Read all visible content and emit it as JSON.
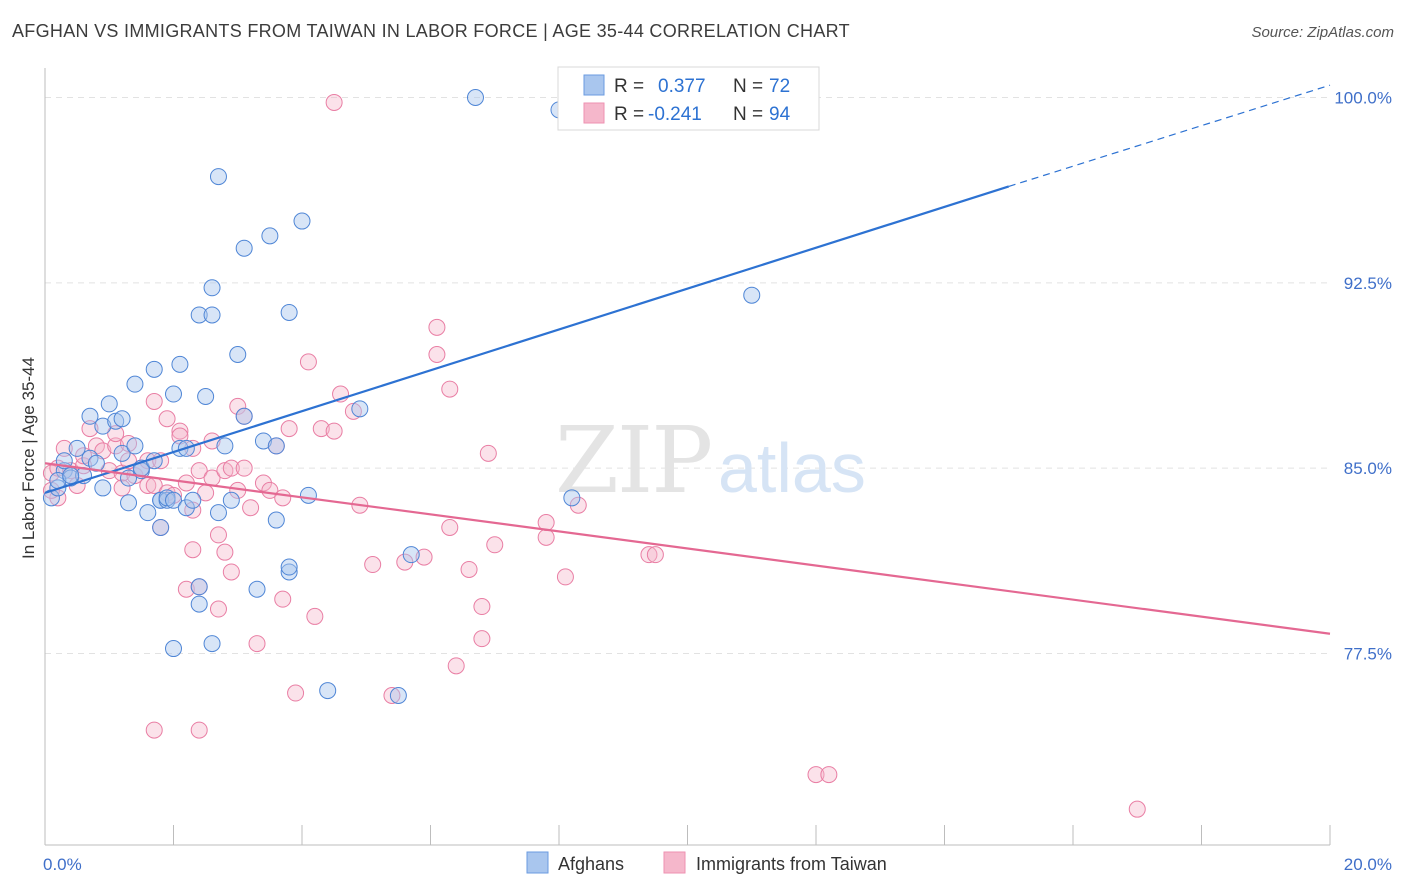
{
  "title": "AFGHAN VS IMMIGRANTS FROM TAIWAN IN LABOR FORCE | AGE 35-44 CORRELATION CHART",
  "source": "Source: ZipAtlas.com",
  "watermark": {
    "zip": "ZIP",
    "atlas": "atlas"
  },
  "colors": {
    "blue": "#2d72d2",
    "pink": "#e46892",
    "blue_fill": "#a9c6ee",
    "pink_fill": "#f5b7cb",
    "tick": "#3f6fc9"
  },
  "chart_data": {
    "type": "scatter",
    "xlabel": "",
    "ylabel": "In Labor Force | Age 35-44",
    "xlim": [
      0,
      20
    ],
    "ylim": [
      71,
      101
    ],
    "x_ticks": [
      {
        "value": 0,
        "label": "0.0%"
      },
      {
        "value": 20,
        "label": "20.0%"
      }
    ],
    "y_ticks": [
      {
        "value": 77.5,
        "label": "77.5%"
      },
      {
        "value": 85.0,
        "label": "85.0%"
      },
      {
        "value": 92.5,
        "label": "92.5%"
      },
      {
        "value": 100.0,
        "label": "100.0%"
      }
    ],
    "grid": true,
    "legend_position": "top-center",
    "legend_stats": [
      {
        "r_label": "R =",
        "r_value": "0.377",
        "n_label": "N =",
        "n_value": "72"
      },
      {
        "r_label": "R =",
        "r_value": "-0.241",
        "n_label": "N =",
        "n_value": "94"
      }
    ],
    "series": [
      {
        "name": "Afghans",
        "color": "#2d72d2",
        "trend": {
          "x": [
            0,
            15
          ],
          "y": [
            84.0,
            96.4
          ],
          "dashed_extension_x": [
            15,
            20
          ],
          "dashed_extension_y": [
            96.4,
            100.5
          ]
        },
        "points": [
          [
            0.1,
            83.8
          ],
          [
            0.2,
            84.2
          ],
          [
            0.3,
            84.9
          ],
          [
            0.3,
            85.3
          ],
          [
            0.4,
            84.6
          ],
          [
            0.5,
            85.8
          ],
          [
            0.6,
            84.7
          ],
          [
            0.7,
            87.1
          ],
          [
            0.7,
            85.4
          ],
          [
            0.8,
            85.2
          ],
          [
            0.9,
            86.7
          ],
          [
            0.9,
            84.2
          ],
          [
            1.0,
            87.6
          ],
          [
            1.1,
            86.9
          ],
          [
            1.2,
            87.0
          ],
          [
            1.2,
            85.6
          ],
          [
            1.3,
            84.6
          ],
          [
            1.3,
            83.6
          ],
          [
            1.4,
            85.9
          ],
          [
            1.4,
            88.4
          ],
          [
            1.5,
            84.9
          ],
          [
            1.5,
            85.0
          ],
          [
            1.6,
            83.2
          ],
          [
            1.7,
            89.0
          ],
          [
            1.7,
            85.3
          ],
          [
            1.8,
            83.7
          ],
          [
            1.8,
            83.7
          ],
          [
            1.8,
            82.6
          ],
          [
            1.9,
            83.7
          ],
          [
            1.9,
            83.8
          ],
          [
            2.0,
            88.0
          ],
          [
            2.0,
            83.7
          ],
          [
            2.0,
            77.7
          ],
          [
            2.1,
            89.2
          ],
          [
            2.1,
            85.8
          ],
          [
            2.2,
            83.4
          ],
          [
            2.2,
            85.8
          ],
          [
            2.3,
            83.7
          ],
          [
            2.4,
            91.2
          ],
          [
            2.4,
            79.5
          ],
          [
            2.4,
            80.2
          ],
          [
            2.5,
            87.9
          ],
          [
            2.6,
            91.2
          ],
          [
            2.6,
            77.9
          ],
          [
            2.6,
            92.3
          ],
          [
            2.7,
            96.8
          ],
          [
            2.7,
            83.2
          ],
          [
            2.8,
            85.9
          ],
          [
            2.9,
            83.7
          ],
          [
            3.0,
            89.6
          ],
          [
            3.1,
            87.1
          ],
          [
            3.1,
            93.9
          ],
          [
            3.3,
            80.1
          ],
          [
            3.4,
            86.1
          ],
          [
            3.5,
            94.4
          ],
          [
            3.6,
            85.9
          ],
          [
            3.6,
            82.9
          ],
          [
            3.8,
            80.8
          ],
          [
            3.8,
            81.0
          ],
          [
            3.8,
            91.3
          ],
          [
            4.0,
            95.0
          ],
          [
            4.1,
            83.9
          ],
          [
            4.4,
            76.0
          ],
          [
            4.9,
            87.4
          ],
          [
            5.5,
            75.8
          ],
          [
            5.7,
            81.5
          ],
          [
            6.7,
            100.0
          ],
          [
            8.2,
            83.8
          ],
          [
            11.0,
            92.0
          ],
          [
            8.0,
            99.5
          ],
          [
            0.2,
            84.5
          ],
          [
            0.4,
            84.7
          ]
        ]
      },
      {
        "name": "Immigrants from Taiwan",
        "color": "#e46892",
        "trend": {
          "x": [
            0,
            20
          ],
          "y": [
            85.2,
            78.3
          ]
        },
        "points": [
          [
            0.1,
            84.8
          ],
          [
            0.2,
            85.0
          ],
          [
            0.3,
            85.8
          ],
          [
            0.4,
            84.9
          ],
          [
            0.5,
            84.3
          ],
          [
            0.6,
            85.1
          ],
          [
            0.7,
            86.6
          ],
          [
            0.8,
            85.9
          ],
          [
            0.9,
            85.7
          ],
          [
            1.0,
            84.9
          ],
          [
            1.1,
            85.9
          ],
          [
            1.1,
            86.4
          ],
          [
            1.2,
            84.8
          ],
          [
            1.2,
            84.2
          ],
          [
            1.3,
            86.0
          ],
          [
            1.3,
            85.3
          ],
          [
            1.4,
            84.7
          ],
          [
            1.5,
            85.0
          ],
          [
            1.6,
            84.3
          ],
          [
            1.6,
            85.3
          ],
          [
            1.7,
            84.3
          ],
          [
            1.7,
            87.7
          ],
          [
            1.8,
            82.6
          ],
          [
            1.8,
            85.3
          ],
          [
            1.9,
            84.0
          ],
          [
            1.9,
            87.0
          ],
          [
            2.0,
            83.9
          ],
          [
            2.1,
            86.5
          ],
          [
            2.1,
            86.3
          ],
          [
            2.2,
            84.4
          ],
          [
            2.2,
            80.1
          ],
          [
            2.3,
            83.3
          ],
          [
            2.3,
            81.7
          ],
          [
            2.3,
            85.8
          ],
          [
            2.4,
            84.9
          ],
          [
            2.4,
            80.2
          ],
          [
            2.5,
            84.0
          ],
          [
            2.6,
            84.6
          ],
          [
            2.6,
            86.1
          ],
          [
            2.7,
            82.3
          ],
          [
            2.7,
            79.3
          ],
          [
            2.8,
            84.9
          ],
          [
            2.8,
            81.6
          ],
          [
            2.9,
            85.0
          ],
          [
            2.9,
            80.8
          ],
          [
            3.0,
            87.5
          ],
          [
            3.0,
            84.1
          ],
          [
            3.1,
            85.0
          ],
          [
            3.1,
            87.1
          ],
          [
            3.2,
            83.4
          ],
          [
            3.3,
            77.9
          ],
          [
            3.4,
            84.4
          ],
          [
            3.5,
            84.1
          ],
          [
            3.6,
            85.9
          ],
          [
            3.7,
            83.8
          ],
          [
            3.7,
            79.7
          ],
          [
            3.8,
            86.6
          ],
          [
            3.9,
            75.9
          ],
          [
            4.1,
            89.3
          ],
          [
            4.2,
            79.0
          ],
          [
            4.3,
            86.6
          ],
          [
            4.5,
            86.5
          ],
          [
            4.6,
            88.0
          ],
          [
            4.8,
            87.3
          ],
          [
            4.9,
            83.5
          ],
          [
            5.1,
            81.1
          ],
          [
            5.4,
            75.8
          ],
          [
            5.6,
            81.2
          ],
          [
            5.9,
            81.4
          ],
          [
            6.1,
            89.6
          ],
          [
            6.1,
            90.7
          ],
          [
            6.3,
            82.6
          ],
          [
            6.3,
            88.2
          ],
          [
            6.4,
            77.0
          ],
          [
            6.6,
            80.9
          ],
          [
            6.8,
            79.4
          ],
          [
            6.8,
            78.1
          ],
          [
            6.9,
            85.6
          ],
          [
            7.0,
            81.9
          ],
          [
            7.8,
            82.2
          ],
          [
            7.8,
            82.8
          ],
          [
            8.1,
            80.6
          ],
          [
            8.3,
            83.5
          ],
          [
            9.4,
            81.5
          ],
          [
            9.5,
            81.5
          ],
          [
            12.0,
            72.6
          ],
          [
            12.2,
            72.6
          ],
          [
            17.0,
            71.2
          ],
          [
            1.7,
            74.4
          ],
          [
            2.4,
            74.4
          ],
          [
            4.5,
            99.8
          ],
          [
            0.2,
            83.8
          ],
          [
            0.1,
            84.1
          ],
          [
            0.6,
            85.5
          ]
        ]
      }
    ]
  }
}
